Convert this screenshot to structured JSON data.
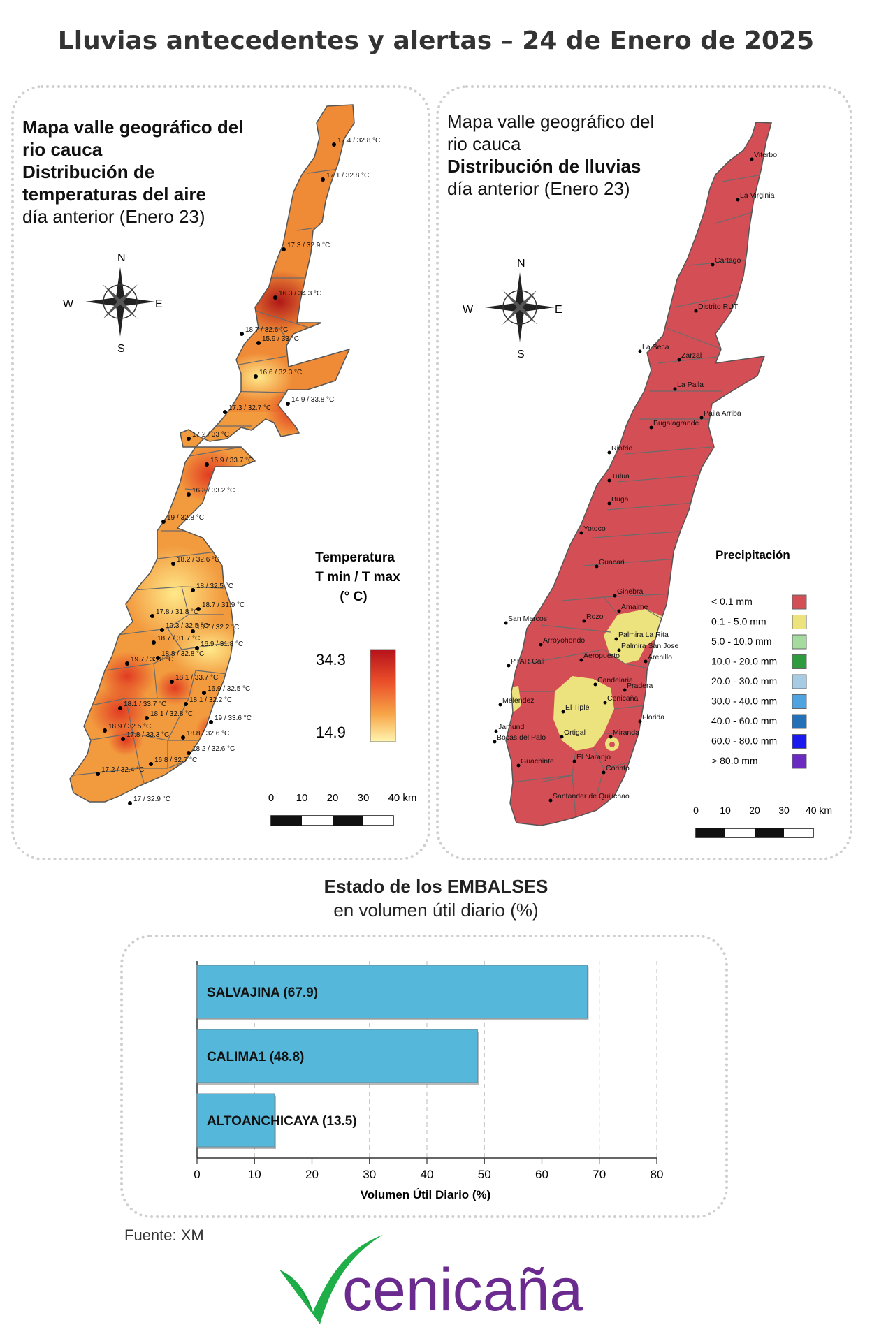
{
  "page": {
    "title": "Lluvias antecedentes y alertas – 24 de Enero de 2025"
  },
  "temp_map": {
    "title_line1": "Mapa valle geográfico del",
    "title_line2": "rio cauca",
    "title_line3": "Distribución de",
    "title_line4": "temperaturas del aire",
    "title_line5": "día anterior (Enero 23)",
    "compass": {
      "n": "N",
      "s": "S",
      "e": "E",
      "w": "W"
    },
    "legend": {
      "title1": "Temperatura",
      "title2": "T min / T max",
      "title3": "(° C)",
      "max": "34.3",
      "min": "14.9",
      "color_high": "#b5121b",
      "color_low": "#fff5b0"
    },
    "scale": {
      "ticks": [
        "0",
        "10",
        "20",
        "30",
        "40 km"
      ]
    },
    "stations": [
      "17.4 / 32.8 °C",
      "17.1 / 32.8 °C",
      "17.3 / 32.9 °C",
      "16.3 / 34.3 °C",
      "18.7 / 32.6 °C",
      "15.9 / 33 °C",
      "16.6 / 32.3 °C",
      "14.9 / 33.8 °C",
      "17.3 / 32.7 °C",
      "17.2 / 33 °C",
      "16.9 / 33.7 °C",
      "16.3 / 33.2 °C",
      "19 / 32.8 °C",
      "18.2 / 32.6 °C",
      "18 / 32.5 °C",
      "18.7 / 31.9 °C",
      "17.8 / 31.8 °C",
      "19.3 / 32.5 °C",
      "16.7 / 32.2 °C",
      "18.7 / 31.7 °C",
      "16.9 / 31.8 °C",
      "18.8 / 32.8 °C",
      "19.7 / 33.8 °C",
      "18.1 / 33.7 °C",
      "16.9 / 32.5 °C",
      "18.1 / 33.7 °C",
      "18.1 / 32.2 °C",
      "18.1 / 32.8 °C",
      "19 / 33.6 °C",
      "18.8 / 32.6 °C",
      "18.9 / 32.5 °C",
      "17.8 / 33.3 °C",
      "18.2 / 32.6 °C",
      "16.8 / 32.7 °C",
      "17.2 / 32.4 °C",
      "17 / 32.9 °C"
    ]
  },
  "rain_map": {
    "title_line1": "Mapa valle geográfico del",
    "title_line2": "rio cauca",
    "title_line3": "Distribución de lluvias",
    "title_line4": "día anterior (Enero 23)",
    "compass": {
      "n": "N",
      "s": "S",
      "e": "E",
      "w": "W"
    },
    "legend": {
      "title": "Precipitación",
      "items": [
        {
          "label": "< 0.1 mm",
          "color": "#d44e55"
        },
        {
          "label": "0.1 - 5.0 mm",
          "color": "#ece27e"
        },
        {
          "label": "5.0 - 10.0 mm",
          "color": "#a6dba0"
        },
        {
          "label": "10.0 - 20.0 mm",
          "color": "#2e9b3e"
        },
        {
          "label": "20.0 - 30.0 mm",
          "color": "#a6cbe3"
        },
        {
          "label": "30.0 - 40.0 mm",
          "color": "#4ea3e0"
        },
        {
          "label": "40.0 - 60.0 mm",
          "color": "#2270b8"
        },
        {
          "label": "60.0 - 80.0 mm",
          "color": "#1a1aee"
        },
        {
          "label": "> 80.0 mm",
          "color": "#6a2cc0"
        }
      ]
    },
    "scale": {
      "ticks": [
        "0",
        "10",
        "20",
        "30",
        "40 km"
      ]
    },
    "places": [
      "Viterbo",
      "La Virginia",
      "Cartago",
      "Distrito RUT",
      "La Seca",
      "Zarzal",
      "La Paila",
      "Paila Arriba",
      "Bugalagrande",
      "Riofrio",
      "Tulua",
      "Buga",
      "Yotoco",
      "Guacari",
      "Ginebra",
      "Amaime",
      "San Marcos",
      "Rozo",
      "Palmira La Rita",
      "Arroyohondo",
      "Palmira San Jose",
      "Aeropuerto",
      "Arenillo",
      "PTAR Cali",
      "Candelaria",
      "Pradera",
      "Melendez",
      "El Tiple",
      "Cenicaña",
      "Florida",
      "Jamundi",
      "Bocas del Palo",
      "Ortigal",
      "Miranda",
      "Guachinte",
      "El Naranjo",
      "Corinto",
      "Santander de Quilichao"
    ]
  },
  "reservoirs": {
    "title": "Estado de los EMBALSES",
    "subtitle": "en volumen útil diario (%)",
    "source": "Fuente: XM"
  },
  "chart_data": {
    "type": "bar",
    "orientation": "horizontal",
    "categories": [
      "SALVAJINA",
      "CALIMA1",
      "ALTOANCHICAYA"
    ],
    "bar_labels": [
      "SALVAJINA (67.9)",
      "CALIMA1 (48.8)",
      "ALTOANCHICAYA (13.5)"
    ],
    "values": [
      67.9,
      48.8,
      13.5
    ],
    "xlabel": "Volumen Útil Diario (%)",
    "xlim": [
      0,
      80
    ],
    "xticks": [
      "0",
      "10",
      "20",
      "30",
      "40",
      "50",
      "60",
      "70",
      "80"
    ],
    "grid": true,
    "bar_color": "#55b8db"
  },
  "logo": {
    "text": "cenicaña",
    "text_color": "#6a2a8e",
    "check_color": "#1fae48"
  }
}
